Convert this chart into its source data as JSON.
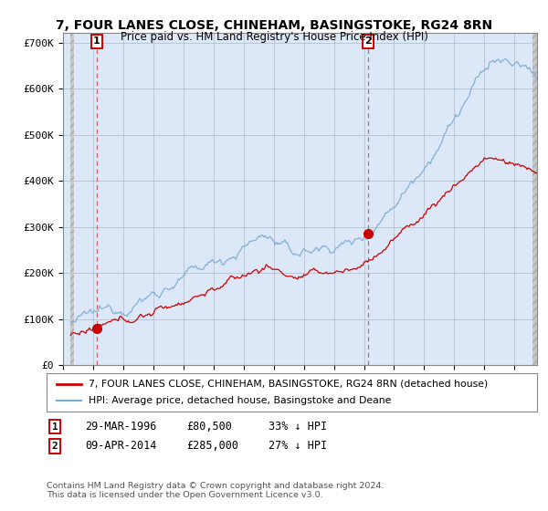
{
  "title": "7, FOUR LANES CLOSE, CHINEHAM, BASINGSTOKE, RG24 8RN",
  "subtitle": "Price paid vs. HM Land Registry's House Price Index (HPI)",
  "title_fontsize": 10,
  "bg_color": "#ffffff",
  "plot_bg_color": "#dce8f8",
  "grid_color": "#b0b8c8",
  "red_line_color": "#cc0000",
  "blue_line_color": "#7aaad0",
  "point1_x": 1996.24,
  "point1_y": 80500,
  "point1_label": "1",
  "point2_x": 2014.27,
  "point2_y": 285000,
  "point2_label": "2",
  "xmin": 1994.5,
  "xmax": 2025.5,
  "ymin": 0,
  "ymax": 720000,
  "yticks": [
    0,
    100000,
    200000,
    300000,
    400000,
    500000,
    600000,
    700000
  ],
  "ytick_labels": [
    "£0",
    "£100K",
    "£200K",
    "£300K",
    "£400K",
    "£500K",
    "£600K",
    "£700K"
  ],
  "xticks": [
    1994,
    1996,
    1998,
    2000,
    2002,
    2004,
    2006,
    2008,
    2010,
    2012,
    2014,
    2016,
    2018,
    2020,
    2022,
    2024
  ],
  "legend_red_label": "7, FOUR LANES CLOSE, CHINEHAM, BASINGSTOKE, RG24 8RN (detached house)",
  "legend_blue_label": "HPI: Average price, detached house, Basingstoke and Deane",
  "annotation1_date": "29-MAR-1996",
  "annotation1_price": "£80,500",
  "annotation1_hpi": "33% ↓ HPI",
  "annotation2_date": "09-APR-2014",
  "annotation2_price": "£285,000",
  "annotation2_hpi": "27% ↓ HPI",
  "footer": "Contains HM Land Registry data © Crown copyright and database right 2024.\nThis data is licensed under the Open Government Licence v3.0.",
  "hatch_left_end": 1994.75,
  "hatch_right_start": 2025.17
}
